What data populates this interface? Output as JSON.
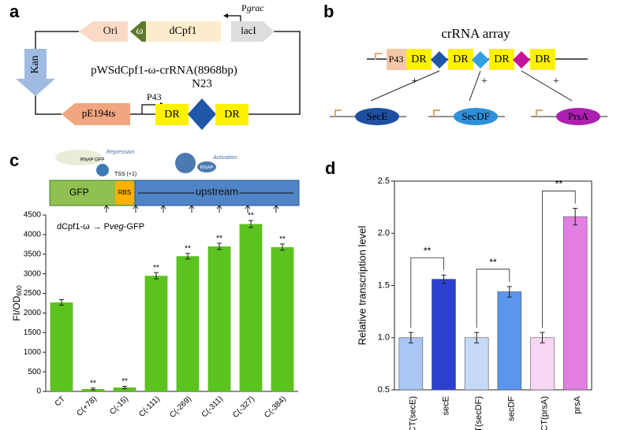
{
  "panel_a": {
    "label": "a",
    "ori": "Ori",
    "omega": "ω",
    "dcpf1": "dCpf1",
    "pgrac_p": "P",
    "pgrac_i": "grac",
    "laci": "lacI",
    "kan": "Kan",
    "plasmid": "pWSdCpf1-ω-crRNA(8968bp)",
    "pe194ts": "pE194ts",
    "p43": "P43",
    "n23": "N23",
    "dr1": "DR",
    "dr2": "DR"
  },
  "panel_b": {
    "label": "b",
    "title": "crRNA array",
    "p43": "P43",
    "dr": [
      "DR",
      "DR",
      "DR",
      "DR"
    ],
    "plus": [
      "+",
      "+",
      "+"
    ],
    "genes": [
      "SecE",
      "SecDF",
      "PrsA"
    ]
  },
  "panel_c": {
    "label": "c",
    "repression": "Repression",
    "activation": "Activation",
    "rnap": "RNAP",
    "gfp_small": "GFP",
    "tss": "TSS (+1)",
    "gfp": "GFP",
    "rbs": "RBS",
    "upstream": "upstream",
    "construct_a": "dCpf1-ω",
    "construct_p": "P",
    "construct_i": "veg",
    "construct_b": "-GFP"
  },
  "panel_d": {
    "label": "d"
  },
  "chart_data": [
    {
      "type": "bar",
      "y_label_main": "FI/OD",
      "y_label_sub": "600",
      "categories": [
        "CT",
        "C(+78)",
        "C(-15)",
        "C(-111)",
        "C(-269)",
        "C(-311)",
        "C(-327)",
        "C(-384)"
      ],
      "values": [
        2270,
        60,
        100,
        2950,
        3450,
        3700,
        4270,
        3680
      ],
      "errors": [
        70,
        25,
        30,
        80,
        70,
        80,
        90,
        80
      ],
      "color": "#5cc21f",
      "significance": [
        null,
        "**",
        "**",
        "**",
        "**",
        "**",
        "**",
        "**"
      ],
      "ylim": [
        0,
        4500
      ],
      "yticks": [
        0,
        500,
        1000,
        1500,
        2000,
        2500,
        3000,
        3500,
        4000,
        4500
      ]
    },
    {
      "type": "bar",
      "y_label": "Relative transcription level",
      "categories": [
        "CT(secE)",
        "secE",
        "CT(secDF)",
        "secDF",
        "CT(prsA)",
        "prsA"
      ],
      "values": [
        1.0,
        1.56,
        1.0,
        1.44,
        1.0,
        2.16
      ],
      "errors": [
        0.05,
        0.04,
        0.05,
        0.05,
        0.05,
        0.08
      ],
      "colors": [
        "#a9c6f5",
        "#2c40cf",
        "#c6d9f6",
        "#5b96ee",
        "#f8d6f6",
        "#e27fe0"
      ],
      "significance": [
        "**",
        "**",
        "**"
      ],
      "ylim": [
        0.5,
        2.5
      ],
      "yticks": [
        0.5,
        {
          "value": 1.0,
          "label": "1.0"
        },
        1.5,
        {
          "value": 2.0,
          "label": "2.0"
        },
        2.5
      ]
    }
  ]
}
